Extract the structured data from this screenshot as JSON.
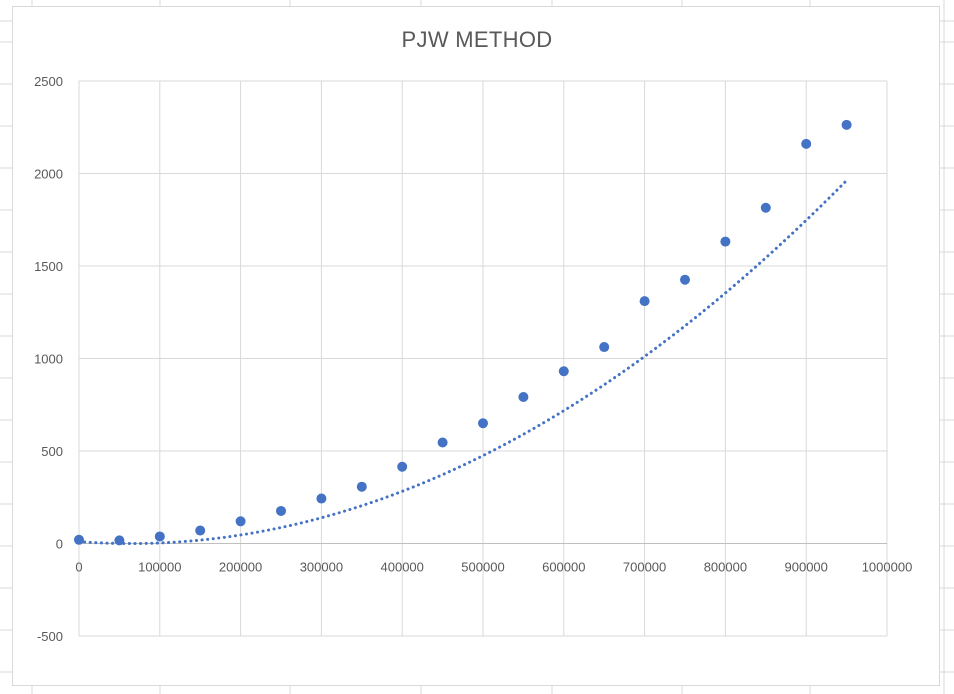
{
  "chart_data": {
    "type": "scatter",
    "title": "PJW METHOD",
    "xlabel": "",
    "ylabel": "",
    "xlim": [
      0,
      1000000
    ],
    "ylim": [
      -500,
      2500
    ],
    "x_ticks": [
      0,
      100000,
      200000,
      300000,
      400000,
      500000,
      600000,
      700000,
      800000,
      900000,
      1000000
    ],
    "y_ticks": [
      -500,
      0,
      500,
      1000,
      1500,
      2000,
      2500
    ],
    "grid": true,
    "legend": "none",
    "series": [
      {
        "x": [
          0,
          50000,
          100000,
          150000,
          200000,
          250000,
          300000,
          350000,
          400000,
          450000,
          500000,
          550000,
          600000,
          650000,
          700000,
          750000,
          800000,
          850000,
          900000,
          950000
        ],
        "y": [
          20,
          17,
          38,
          70,
          120,
          176,
          243,
          307,
          415,
          546,
          650,
          792,
          931,
          1062,
          1310,
          1426,
          1632,
          1815,
          2160,
          2263
        ],
        "color": "#4472c4",
        "marker": "circle"
      }
    ],
    "trendline": {
      "type": "polynomial",
      "style": "dotted",
      "color": "#4472c4",
      "x_start": 0,
      "x_end": 950000,
      "coefficients": [
        10,
        -0.00032,
        2.5e-09
      ]
    }
  }
}
